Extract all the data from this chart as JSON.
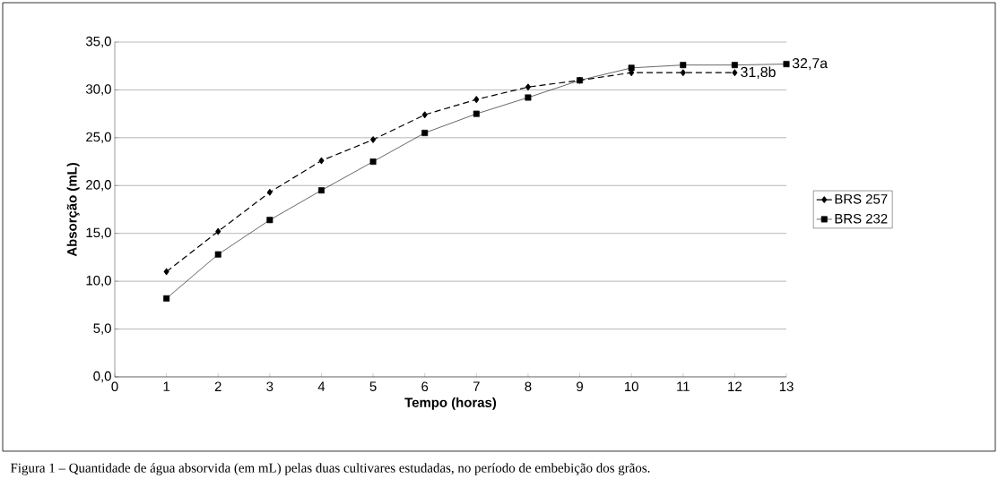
{
  "chart_data": {
    "type": "line",
    "xlabel": "Tempo (horas)",
    "ylabel": "Absorção (mL)",
    "x": [
      1,
      2,
      3,
      4,
      5,
      6,
      7,
      8,
      9,
      10,
      11,
      12,
      13
    ],
    "series": [
      {
        "name": "BRS 257",
        "color": "#000000",
        "marker": "diamond",
        "line_style": "dashed",
        "values": [
          11.0,
          15.2,
          19.3,
          22.6,
          24.8,
          27.4,
          29.0,
          30.3,
          31.0,
          31.8,
          31.8,
          31.8,
          null
        ]
      },
      {
        "name": "BRS 232",
        "color": "#000000",
        "marker": "square",
        "line_style": "solid",
        "values": [
          8.2,
          12.8,
          16.4,
          19.5,
          22.5,
          25.5,
          27.5,
          29.2,
          31.0,
          32.3,
          32.6,
          32.6,
          32.7
        ]
      }
    ],
    "xlim": [
      0,
      13
    ],
    "ylim": [
      0,
      35
    ],
    "xticks": [
      0,
      1,
      2,
      3,
      4,
      5,
      6,
      7,
      8,
      9,
      10,
      11,
      12,
      13
    ],
    "yticks": [
      {
        "value": 0,
        "label": "0,0"
      },
      {
        "value": 5,
        "label": "5,0"
      },
      {
        "value": 10,
        "label": "10,0"
      },
      {
        "value": 15,
        "label": "15,0"
      },
      {
        "value": 20,
        "label": "20,0"
      },
      {
        "value": 25,
        "label": "25,0"
      },
      {
        "value": 30,
        "label": "30,0"
      },
      {
        "value": 35,
        "label": "35,0"
      }
    ],
    "grid": "y",
    "legend": "right",
    "annotations": [
      {
        "text": "31,8b",
        "x": 12,
        "y": 31.8
      },
      {
        "text": "32,7a",
        "x": 13,
        "y": 32.7
      },
      "Figura 1 – Quantidade de água absorvida (em mL) pelas duas cultivares estudadas, no período de embebição dos grãos."
    ]
  }
}
